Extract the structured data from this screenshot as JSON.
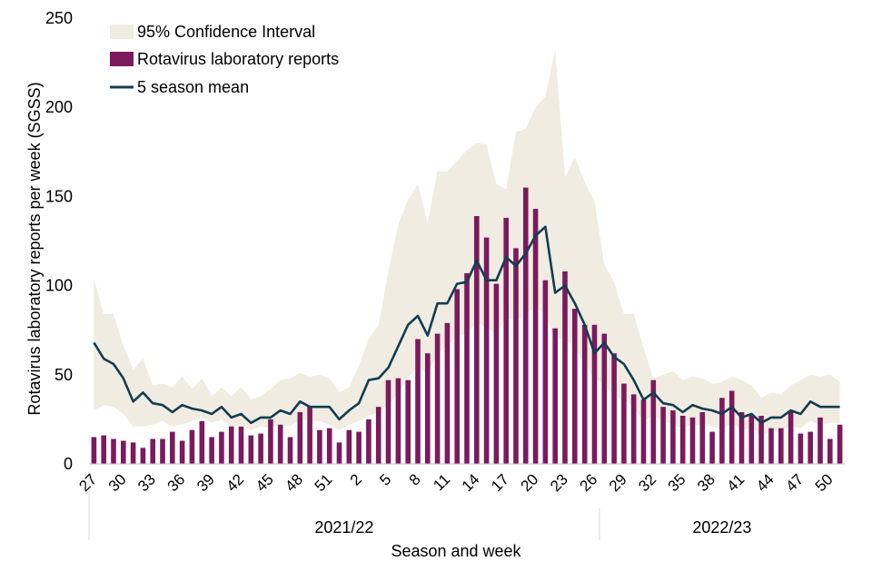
{
  "chart_data": {
    "type": "bar",
    "xlabel": "Season and week",
    "ylabel": "Rotavirus laboratory reports per week (SGSS)",
    "ylim": [
      0,
      250
    ],
    "yticks": [
      0,
      50,
      100,
      150,
      200,
      250
    ],
    "grid": false,
    "legend_position": "top-left",
    "colors": {
      "bar": "#7b1a5d",
      "line": "#123d52",
      "band": "#f0ece1"
    },
    "categories": [
      "27",
      "28",
      "29",
      "30",
      "31",
      "32",
      "33",
      "34",
      "35",
      "36",
      "37",
      "38",
      "39",
      "40",
      "41",
      "42",
      "43",
      "44",
      "45",
      "46",
      "47",
      "48",
      "49",
      "50",
      "51",
      "52",
      "1",
      "2",
      "3",
      "4",
      "5",
      "6",
      "7",
      "8",
      "9",
      "10",
      "11",
      "12",
      "13",
      "14",
      "15",
      "16",
      "17",
      "18",
      "19",
      "20",
      "21",
      "22",
      "23",
      "24",
      "25",
      "26",
      "27",
      "28",
      "29",
      "30",
      "31",
      "32",
      "33",
      "34",
      "35",
      "36",
      "37",
      "38",
      "39",
      "40",
      "41",
      "42",
      "43",
      "44",
      "45",
      "46",
      "47",
      "48",
      "49",
      "50",
      "51"
    ],
    "tick_labels": [
      "27",
      "30",
      "33",
      "36",
      "39",
      "42",
      "45",
      "48",
      "51",
      "2",
      "5",
      "8",
      "11",
      "14",
      "17",
      "20",
      "23",
      "26",
      "29",
      "32",
      "35",
      "38",
      "41",
      "44",
      "47",
      "50"
    ],
    "seasons": [
      {
        "label": "2021/22",
        "start": 0,
        "end": 52
      },
      {
        "label": "2022/23",
        "start": 52,
        "end": 77
      }
    ],
    "series": [
      {
        "name": "Rotavirus laboratory reports",
        "kind": "bar",
        "values": [
          15,
          16,
          14,
          13,
          12,
          9,
          14,
          14,
          18,
          13,
          19,
          24,
          15,
          18,
          21,
          21,
          16,
          17,
          25,
          22,
          15,
          29,
          32,
          19,
          20,
          12,
          19,
          18,
          25,
          32,
          47,
          48,
          47,
          70,
          62,
          73,
          79,
          98,
          107,
          139,
          127,
          101,
          138,
          121,
          155,
          143,
          103,
          76,
          108,
          87,
          78,
          78,
          73,
          62,
          45,
          39,
          36,
          47,
          32,
          30,
          27,
          26,
          29,
          18,
          37,
          41,
          29,
          27,
          27,
          20,
          20,
          29,
          17,
          18,
          26,
          14,
          22
        ]
      },
      {
        "name": "5 season mean",
        "kind": "line",
        "values": [
          68,
          59,
          56,
          48,
          35,
          40,
          34,
          33,
          29,
          33,
          31,
          30,
          28,
          32,
          26,
          28,
          23,
          26,
          26,
          30,
          28,
          35,
          32,
          32,
          32,
          25,
          30,
          34,
          47,
          48,
          54,
          66,
          78,
          83,
          72,
          90,
          90,
          101,
          102,
          114,
          103,
          103,
          116,
          111,
          118,
          128,
          133,
          96,
          100,
          90,
          78,
          62,
          68,
          60,
          56,
          47,
          36,
          40,
          34,
          33,
          29,
          33,
          31,
          30,
          28,
          32,
          26,
          28,
          23,
          26,
          26,
          30,
          28,
          35,
          32,
          32,
          32
        ]
      },
      {
        "name": "95% Confidence Interval",
        "kind": "band",
        "lower": [
          30,
          33,
          32,
          28,
          21,
          21,
          22,
          24,
          21,
          22,
          24,
          26,
          23,
          25,
          20,
          22,
          19,
          21,
          20,
          22,
          21,
          25,
          24,
          24,
          22,
          19,
          22,
          24,
          27,
          29,
          33,
          40,
          48,
          55,
          50,
          62,
          66,
          72,
          73,
          80,
          76,
          73,
          82,
          80,
          84,
          88,
          84,
          70,
          70,
          65,
          56,
          48,
          45,
          38,
          36,
          32,
          24,
          27,
          24,
          22,
          20,
          22,
          22,
          21,
          19,
          23,
          19,
          20,
          16,
          18,
          19,
          21,
          20,
          24,
          22,
          23,
          23
        ],
        "upper": [
          104,
          84,
          84,
          66,
          53,
          59,
          44,
          45,
          43,
          49,
          42,
          48,
          38,
          43,
          38,
          43,
          36,
          38,
          42,
          47,
          48,
          51,
          49,
          50,
          48,
          40,
          43,
          55,
          70,
          78,
          108,
          134,
          148,
          157,
          135,
          164,
          164,
          170,
          176,
          180,
          179,
          157,
          154,
          186,
          188,
          200,
          206,
          232,
          161,
          172,
          158,
          147,
          112,
          102,
          84,
          84,
          65,
          48,
          50,
          52,
          47,
          49,
          48,
          45,
          46,
          49,
          47,
          44,
          37,
          40,
          39,
          44,
          47,
          50,
          49,
          50,
          46
        ]
      }
    ],
    "legend": [
      {
        "label": "95% Confidence Interval"
      },
      {
        "label": "Rotavirus laboratory reports"
      },
      {
        "label": "5 season mean"
      }
    ]
  }
}
